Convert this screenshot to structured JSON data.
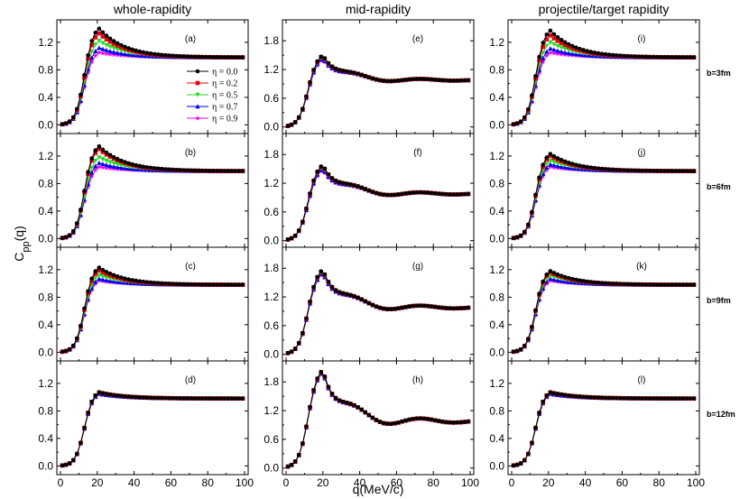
{
  "chart_data": {
    "type": "line",
    "column_titles": [
      "whole-rapidity",
      "mid-rapidity",
      "projectile/target rapidity"
    ],
    "row_labels": [
      "b=3fm",
      "b=6fm",
      "b=9fm",
      "b=12fm"
    ],
    "panel_labels": [
      [
        "(a)",
        "(e)",
        "(i)"
      ],
      [
        "(b)",
        "(f)",
        "(j)"
      ],
      [
        "(c)",
        "(g)",
        "(k)"
      ],
      [
        "(d)",
        "(h)",
        "(l)"
      ]
    ],
    "xlabel": "q(MeV/c)",
    "ylabel": "Cpp(q)",
    "ylabel_main": "C",
    "ylabel_sub": "pp",
    "ylabel_arg": "(q)",
    "xlim": [
      0,
      100
    ],
    "xticks": [
      0,
      20,
      40,
      60,
      80,
      100
    ],
    "xtick_labels": [
      "0",
      "20",
      "40",
      "60",
      "80",
      "100"
    ],
    "ylims": [
      [
        -0.1,
        1.5
      ],
      [
        -0.1,
        2.2
      ]
    ],
    "yticks": [
      [
        0.0,
        0.4,
        0.8,
        1.2
      ],
      [
        0.0,
        0.6,
        1.2,
        1.8
      ]
    ],
    "ytick_labels": [
      [
        "0.0",
        "0.4",
        "0.8",
        "1.2"
      ],
      [
        "0.0",
        "0.6",
        "1.2",
        "1.8"
      ]
    ],
    "x": [
      1,
      3,
      5,
      7,
      9,
      11,
      13,
      15,
      17,
      19,
      21,
      23,
      25,
      27,
      29,
      31,
      33,
      35,
      37,
      39,
      41,
      43,
      45,
      47,
      49,
      51,
      53,
      55,
      57,
      59,
      61,
      63,
      65,
      67,
      69,
      71,
      73,
      75,
      77,
      79,
      81,
      83,
      85,
      87,
      89,
      91,
      93,
      95,
      97,
      99
    ],
    "series": [
      {
        "name": "η = 0.0",
        "color": "#000000",
        "marker": "circle"
      },
      {
        "name": "η = 0.2",
        "color": "#e8000b",
        "marker": "square"
      },
      {
        "name": "η = 0.5",
        "color": "#22dd22",
        "marker": "triangle-down"
      },
      {
        "name": "η = 0.7",
        "color": "#0000ee",
        "marker": "triangle-up"
      },
      {
        "name": "η = 0.9",
        "color": "#ee00ee",
        "marker": "star"
      }
    ],
    "peaks": [
      [
        [
          1.4,
          1.33,
          1.22,
          1.12,
          1.05
        ],
        [
          1.5,
          1.49,
          1.47,
          1.44,
          1.41
        ],
        [
          1.37,
          1.3,
          1.2,
          1.11,
          1.05
        ]
      ],
      [
        [
          1.34,
          1.3,
          1.18,
          1.1,
          1.04
        ],
        [
          1.58,
          1.57,
          1.55,
          1.51,
          1.48
        ],
        [
          1.23,
          1.2,
          1.13,
          1.08,
          1.04
        ]
      ],
      [
        [
          1.23,
          1.19,
          1.12,
          1.07,
          1.04
        ],
        [
          1.77,
          1.76,
          1.74,
          1.71,
          1.69
        ],
        [
          1.18,
          1.16,
          1.11,
          1.07,
          1.04
        ]
      ],
      [
        [
          1.07,
          1.07,
          1.06,
          1.05,
          1.04
        ],
        [
          2.05,
          2.04,
          2.03,
          2.01,
          2.0
        ],
        [
          1.07,
          1.07,
          1.06,
          1.05,
          1.04
        ]
      ]
    ],
    "asymptote": 0.98
  }
}
